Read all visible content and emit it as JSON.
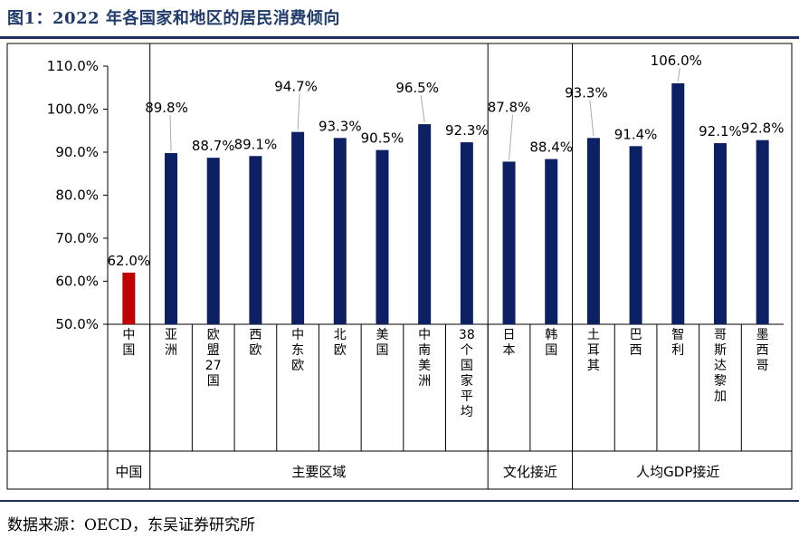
{
  "title": "图1：2022 年各国家和地区的居民消费倾向",
  "source": "数据来源：OECD，东吴证券研究所",
  "colors": {
    "bar": "#0d2063",
    "highlight": "#c00000",
    "leader": "#aaaaaa"
  },
  "chart_data": {
    "type": "bar",
    "categories": [
      "中国",
      "亚洲",
      "欧盟27国",
      "西欧",
      "中东欧",
      "北欧",
      "美国",
      "中南美洲",
      "38个国家平均",
      "日本",
      "韩国",
      "土耳其",
      "巴西",
      "智利",
      "哥斯达黎加",
      "墨西哥"
    ],
    "values": [
      62.0,
      89.8,
      88.7,
      89.1,
      94.7,
      93.3,
      90.5,
      96.5,
      92.3,
      87.8,
      88.4,
      93.3,
      91.4,
      106.0,
      92.1,
      92.8
    ],
    "value_labels": [
      "62.0%",
      "89.8%",
      "88.7%",
      "89.1%",
      "94.7%",
      "93.3%",
      "90.5%",
      "96.5%",
      "92.3%",
      "87.8%",
      "88.4%",
      "93.3%",
      "91.4%",
      "106.0%",
      "92.1%",
      "92.8%"
    ],
    "highlight_index": 0,
    "ylim": [
      50,
      110
    ],
    "yticks": [
      "50.0%",
      "60.0%",
      "70.0%",
      "80.0%",
      "90.0%",
      "100.0%",
      "110.0%"
    ],
    "groups": [
      {
        "label": "中国",
        "start": 0,
        "end": 0
      },
      {
        "label": "主要区域",
        "start": 1,
        "end": 8
      },
      {
        "label": "文化接近",
        "start": 9,
        "end": 10
      },
      {
        "label": "人均GDP接近",
        "start": 11,
        "end": 15
      }
    ],
    "grid": false,
    "legend": "none"
  }
}
